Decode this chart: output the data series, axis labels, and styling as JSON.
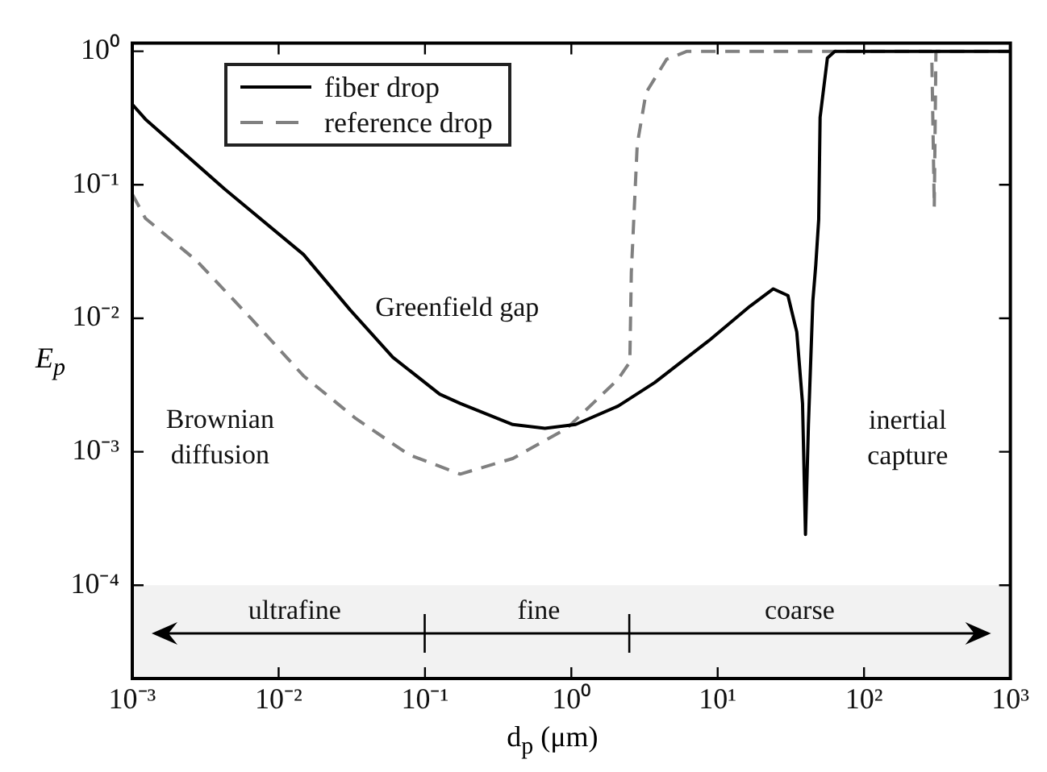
{
  "chart_data": {
    "type": "line",
    "xlabel": "d$_{p}$ (μm)",
    "ylabel": "E$_{p}$",
    "log": "xy",
    "grid": false,
    "legend": "top left",
    "marker": "none",
    "xlim": [
      0.001,
      1000
    ],
    "xticks": [
      {
        "value": 0.001,
        "label": "10⁻³"
      },
      {
        "value": 0.01,
        "label": "10⁻²"
      },
      {
        "value": 0.1,
        "label": "10⁻¹"
      },
      {
        "value": 1,
        "label": "10⁰"
      },
      {
        "value": 10,
        "label": "10¹"
      },
      {
        "value": 100,
        "label": "10²"
      },
      {
        "value": 1000,
        "label": "10³"
      }
    ],
    "ylim": [
      2e-05,
      1.15
    ],
    "yticks": [
      {
        "value": 0.0001,
        "label": "10⁻⁴"
      },
      {
        "value": 0.001,
        "label": "10⁻³"
      },
      {
        "value": 0.01,
        "label": "10⁻²"
      },
      {
        "value": 0.1,
        "label": "10⁻¹"
      },
      {
        "value": 1,
        "label": "10⁰"
      }
    ],
    "series": [
      {
        "name": "fiber drop",
        "color": "#000000",
        "line_style": "solid",
        "x": [
          0.001,
          0.00123,
          0.00427,
          0.0148,
          0.0309,
          0.0603,
          0.126,
          0.174,
          0.398,
          0.66,
          1.07,
          2.09,
          3.72,
          8.71,
          16.6,
          24,
          30.2,
          34.7,
          38,
          39.8,
          41.7,
          44.7,
          46.8,
          49,
          50.1,
          56.2,
          63.1,
          1000
        ],
        "values": [
          0.4,
          0.31,
          0.093,
          0.03,
          0.0115,
          0.0051,
          0.0027,
          0.0023,
          0.0016,
          0.0015,
          0.0016,
          0.0022,
          0.0033,
          0.0068,
          0.0123,
          0.0166,
          0.0148,
          0.0079,
          0.0023,
          0.00024,
          0.0016,
          0.0135,
          0.025,
          0.055,
          0.32,
          0.89,
          1,
          1
        ]
      },
      {
        "name": "reference drop",
        "color": "#808080",
        "line_style": "dashed",
        "x": [
          0.001,
          0.00123,
          0.00275,
          0.00646,
          0.0148,
          0.0331,
          0.0776,
          0.174,
          0.398,
          0.933,
          2.09,
          2.51,
          2.57,
          2.82,
          3.24,
          4.47,
          6.17,
          290,
          302,
          310,
          1000
        ],
        "values": [
          0.085,
          0.056,
          0.027,
          0.01,
          0.0037,
          0.0018,
          0.00095,
          0.00068,
          0.00089,
          0.0015,
          0.0035,
          0.0047,
          0.022,
          0.2,
          0.49,
          0.87,
          1,
          1,
          0.068,
          1,
          1
        ]
      }
    ],
    "bands": [
      {
        "axis": "y",
        "from": 2e-05,
        "to": 0.0001,
        "color": "#f2f2f2"
      }
    ],
    "annotations": [
      "ultrafine",
      "fine",
      "coarse",
      "Greenfield gap",
      "Brownian\ndiffusion",
      "inertial\ncapture"
    ]
  }
}
